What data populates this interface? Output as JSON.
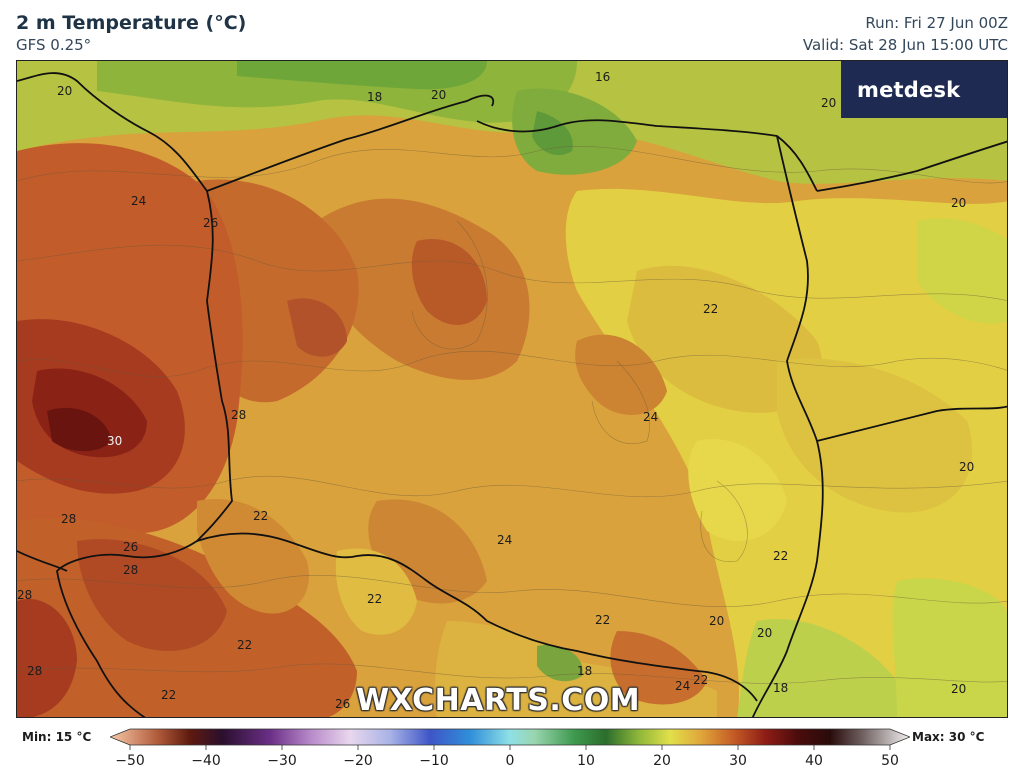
{
  "header": {
    "title": "2 m Temperature (°C)",
    "model": "GFS 0.25°",
    "run": "Run: Fri 27 Jun 00Z",
    "valid": "Valid: Sat 28 Jun 15:00 UTC"
  },
  "branding": {
    "logo_text": "metdesk",
    "watermark": "WXCHARTS.COM"
  },
  "colorbar": {
    "min_label": "Min: 15 °C",
    "max_label": "Max: 30 °C",
    "ticks": [
      "−50",
      "−40",
      "−30",
      "−20",
      "−10",
      "0",
      "10",
      "20",
      "30",
      "40",
      "50"
    ],
    "tick_values": [
      -50,
      -40,
      -30,
      -20,
      -10,
      0,
      10,
      20,
      30,
      40,
      50
    ],
    "range": [
      -50,
      50
    ],
    "stops": [
      {
        "v": -50,
        "c": "#f7c9a8"
      },
      {
        "v": -44,
        "c": "#b05a3a"
      },
      {
        "v": -40,
        "c": "#5e1a0e"
      },
      {
        "v": -36,
        "c": "#2b0f2e"
      },
      {
        "v": -30,
        "c": "#6a2f86"
      },
      {
        "v": -25,
        "c": "#b788c9"
      },
      {
        "v": -20,
        "c": "#e8d7ee"
      },
      {
        "v": -15,
        "c": "#a9b3e6"
      },
      {
        "v": -10,
        "c": "#3f55c7"
      },
      {
        "v": -5,
        "c": "#2f8fd9"
      },
      {
        "v": 0,
        "c": "#8fe0e6"
      },
      {
        "v": 3,
        "c": "#9ad6b0"
      },
      {
        "v": 8,
        "c": "#3e9a4f"
      },
      {
        "v": 12,
        "c": "#2c6d2c"
      },
      {
        "v": 16,
        "c": "#8cb63a"
      },
      {
        "v": 20,
        "c": "#e1e04a"
      },
      {
        "v": 24,
        "c": "#e0a43a"
      },
      {
        "v": 28,
        "c": "#c45a25"
      },
      {
        "v": 32,
        "c": "#8d1c16"
      },
      {
        "v": 36,
        "c": "#4a0c0c"
      },
      {
        "v": 40,
        "c": "#2a0b0b"
      },
      {
        "v": 44,
        "c": "#6e5f5f"
      },
      {
        "v": 50,
        "c": "#f4f1f1"
      }
    ]
  },
  "map": {
    "temperature_labels": [
      "20",
      "18",
      "20",
      "16",
      "20",
      "24",
      "26",
      "20",
      "22",
      "28",
      "30",
      "24",
      "20",
      "22",
      "28",
      "26",
      "28",
      "24",
      "22",
      "22",
      "28",
      "22",
      "22",
      "20",
      "20",
      "18",
      "24",
      "22",
      "18",
      "28",
      "22",
      "26",
      "20"
    ]
  }
}
